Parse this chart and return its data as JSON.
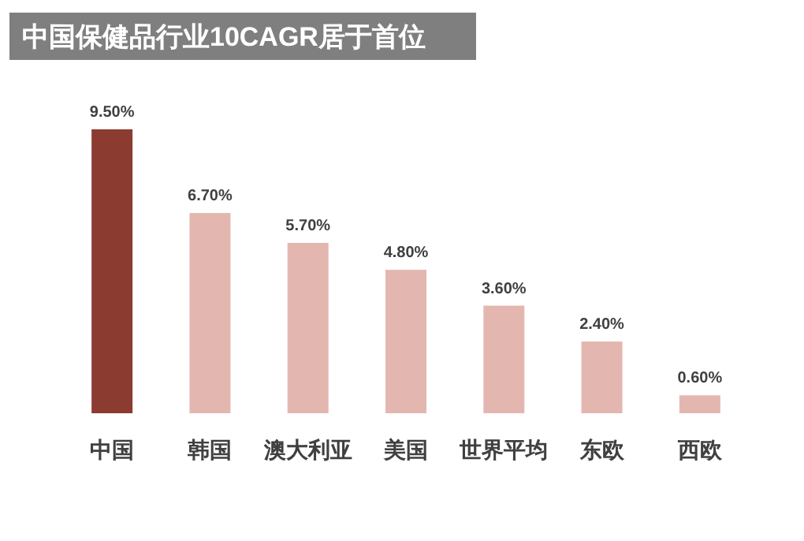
{
  "chart_data": {
    "type": "bar",
    "title": "中国保健品行业10CAGR居于首位",
    "categories": [
      "中国",
      "韩国",
      "澳大利亚",
      "美国",
      "世界平均",
      "东欧",
      "西欧"
    ],
    "values": [
      9.5,
      6.7,
      5.7,
      4.8,
      3.6,
      2.4,
      0.6
    ],
    "value_labels": [
      "9.50%",
      "6.70%",
      "5.70%",
      "4.80%",
      "3.60%",
      "2.40%",
      "0.60%"
    ],
    "colors": [
      "#8c3b30",
      "#e3b7b0",
      "#e3b7b0",
      "#e3b7b0",
      "#e3b7b0",
      "#e3b7b0",
      "#e3b7b0"
    ]
  }
}
